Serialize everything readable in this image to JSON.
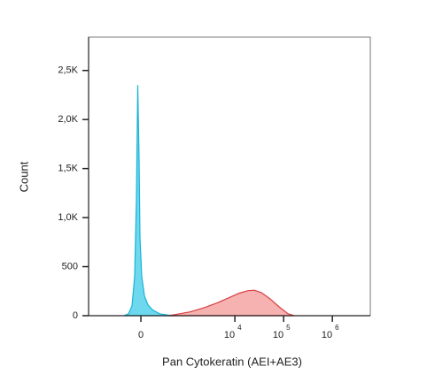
{
  "chart_data": {
    "type": "histogram-overlay",
    "x_label": "Pan  Cytokeratin (AEI+AE3)",
    "y_label": "Count",
    "xscale": "asinh",
    "xscale_width": 236,
    "xlim": [
      -1385,
      6000000
    ],
    "xticks": [
      {
        "value": 0,
        "label": "0"
      },
      {
        "value": 10000,
        "label": "10",
        "exponent": "4"
      },
      {
        "value": 100000,
        "label": "10",
        "exponent": "5"
      },
      {
        "value": 1000000,
        "label": "10",
        "exponent": "6"
      }
    ],
    "ylim": [
      0,
      2840
    ],
    "yticks": [
      0,
      500,
      {
        "value": 1000,
        "label": "1,0K"
      },
      {
        "value": 1500,
        "label": "1,5K"
      },
      {
        "value": 2000,
        "label": "2,0K"
      },
      {
        "value": 2500,
        "label": "2,5K"
      }
    ],
    "series": [
      {
        "color": "#1ab3d6",
        "fill": "#5ed4ec",
        "x": [
          -208,
          -146,
          -102,
          -70,
          -50,
          -35,
          -20,
          -10,
          10,
          40,
          80,
          135,
          235,
          401,
          635
        ],
        "values": [
          0,
          20,
          100,
          400,
          1200,
          2350,
          1600,
          800,
          400,
          200,
          110,
          60,
          20,
          5,
          0
        ]
      },
      {
        "color": "#d94040",
        "fill": "#f5a8a8",
        "x": [
          401,
          635,
          1220,
          2299,
          4318,
          8094,
          12300,
          18700,
          25000,
          35000,
          53100,
          81000,
          123000,
          165000
        ],
        "values": [
          0,
          15,
          40,
          80,
          130,
          190,
          230,
          255,
          260,
          235,
          170,
          90,
          20,
          0
        ]
      }
    ]
  }
}
